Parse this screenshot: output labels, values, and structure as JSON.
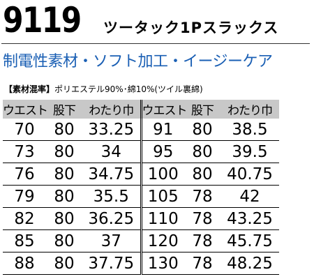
{
  "header": {
    "code": "9119",
    "title": "ツータック1Pスラックス",
    "subtitle": "制電性素材・ソフト加工・イージーケア"
  },
  "material": {
    "label": "【素材混率】",
    "text": "ポリエステル90%･綿10%(ツイル裏綿)"
  },
  "table": {
    "columns": [
      "ウエスト",
      "股下",
      "わたり巾",
      "ウエスト",
      "股下",
      "わたり巾"
    ],
    "rows": [
      [
        "70",
        "80",
        "33.25",
        "91",
        "80",
        "38.5"
      ],
      [
        "73",
        "80",
        "34",
        "95",
        "80",
        "39.5"
      ],
      [
        "76",
        "80",
        "34.75",
        "100",
        "80",
        "40.75"
      ],
      [
        "79",
        "80",
        "35.5",
        "105",
        "78",
        "42"
      ],
      [
        "82",
        "80",
        "36.25",
        "110",
        "78",
        "43.25"
      ],
      [
        "85",
        "80",
        "37",
        "120",
        "78",
        "45.75"
      ],
      [
        "88",
        "80",
        "37.75",
        "130",
        "78",
        "48.25"
      ]
    ]
  }
}
